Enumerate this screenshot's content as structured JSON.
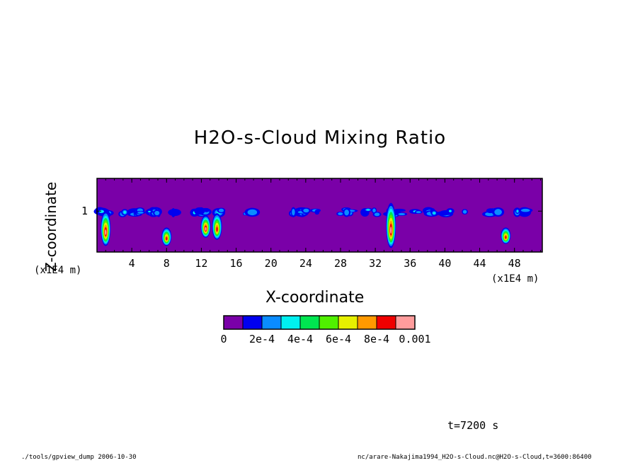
{
  "chart_data": {
    "type": "heatmap",
    "title": "H2O-s-Cloud Mixing Ratio",
    "xlabel": "X-coordinate",
    "ylabel": "Z-coordinate",
    "x_unit": "(x1E4 m)",
    "y_unit": "(x1E4 m)",
    "xlim": [
      0,
      51.2
    ],
    "ylim": [
      0,
      1.8
    ],
    "x_ticks": [
      "4",
      "8",
      "12",
      "16",
      "20",
      "24",
      "28",
      "32",
      "36",
      "40",
      "44",
      "48"
    ],
    "x_tick_values": [
      4,
      8,
      12,
      16,
      20,
      24,
      28,
      32,
      36,
      40,
      44,
      48
    ],
    "y_ticks": [
      "1"
    ],
    "y_tick_values": [
      1
    ],
    "colorbar": {
      "levels": [
        0,
        0.0001,
        0.0002,
        0.0003,
        0.0004,
        0.0005,
        0.0006,
        0.0007,
        0.0008,
        0.0009,
        0.001
      ],
      "labels": [
        "0",
        "2e-4",
        "4e-4",
        "6e-4",
        "8e-4",
        "0.001"
      ],
      "colors": [
        "#7a00a8",
        "#0000f0",
        "#0a8cff",
        "#00f0f0",
        "#00e650",
        "#50f000",
        "#e6f000",
        "#ff9900",
        "#f00000",
        "#ff9c9c"
      ]
    },
    "cloud_features": [
      {
        "x": 1.0,
        "z_bottom": 0.15,
        "z_top": 1.0,
        "max_value": 0.0009
      },
      {
        "x": 8.0,
        "z_bottom": 0.15,
        "z_top": 0.6,
        "max_value": 0.0008
      },
      {
        "x": 12.5,
        "z_bottom": 0.35,
        "z_top": 0.9,
        "max_value": 0.0009
      },
      {
        "x": 13.8,
        "z_bottom": 0.3,
        "z_top": 0.95,
        "max_value": 0.0008
      },
      {
        "x": 33.8,
        "z_bottom": 0.1,
        "z_top": 1.2,
        "max_value": 0.001
      },
      {
        "x": 47.0,
        "z_bottom": 0.2,
        "z_top": 0.6,
        "max_value": 0.0008
      }
    ],
    "cloud_layer": {
      "z_bottom": 0.85,
      "z_top": 1.1,
      "typical_value": 0.0002
    },
    "grid": false
  },
  "annotations": {
    "time": "t=7200 s",
    "footer_left": "./tools/gpview_dump  2006-10-30",
    "footer_right": "nc/arare-Nakajima1994_H2O-s-Cloud.nc@H2O-s-Cloud,t=3600:86400"
  }
}
